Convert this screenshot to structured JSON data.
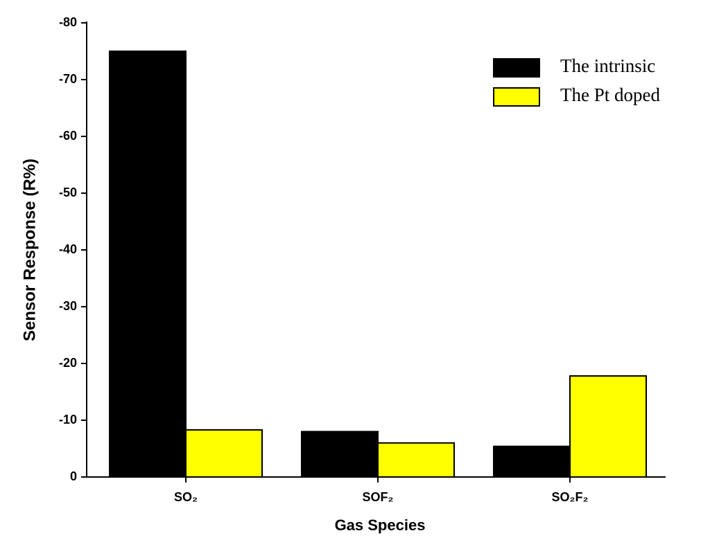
{
  "chart_data": {
    "type": "bar",
    "x_label": "Gas Species",
    "y_label": "Sensor Response (R%)",
    "categories": [
      "SO₂",
      "SOF₂",
      "SO₂F₂"
    ],
    "series": [
      {
        "name": "The intrinsic",
        "color": "#000000",
        "values": [
          -75,
          -8,
          -5.4
        ]
      },
      {
        "name": "The Pt doped",
        "color": "#ffff00",
        "values": [
          -8.3,
          -6,
          -17.8
        ]
      }
    ],
    "ylim": [
      0,
      -80
    ],
    "yticks": [
      0,
      -10,
      -20,
      -30,
      -40,
      -50,
      -60,
      -70,
      -80
    ],
    "legend": "upper right"
  }
}
